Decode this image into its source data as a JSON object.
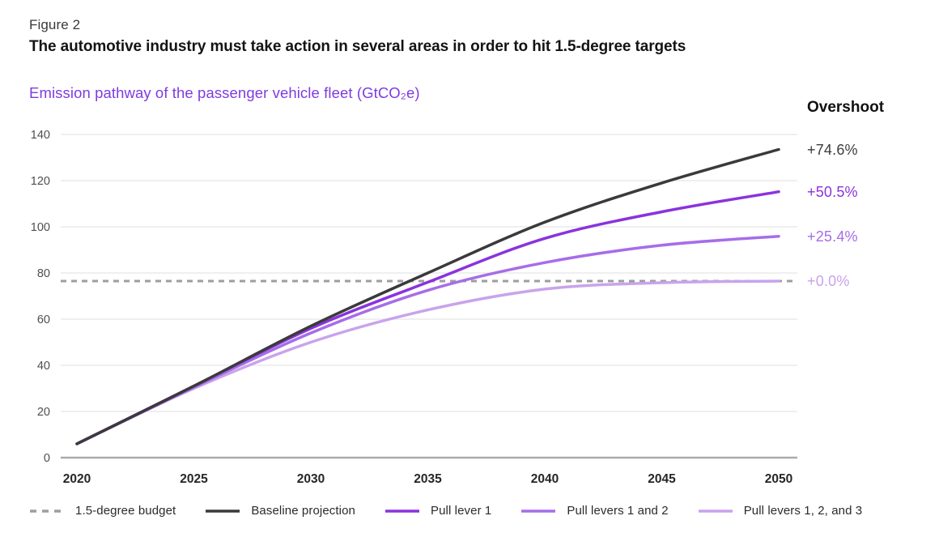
{
  "figure_label": "Figure 2",
  "title": "The automotive industry must take action in several areas in order to hit 1.5-degree targets",
  "subtitle": "Emission pathway of the passenger vehicle fleet (GtCO₂e)",
  "colors": {
    "subtitle_accent": "#7d3ce0",
    "baseline": "#3a3a3a",
    "lever1": "#8a33dd",
    "levers12": "#a66de8",
    "levers123": "#c9a3ec",
    "budget_dash": "#9e9e9e",
    "gridline": "#e5e5e5",
    "axis_line": "#ababab",
    "x_tick": "#262626",
    "y_tick": "#4f4f4f"
  },
  "overshoot": {
    "header": "Overshoot",
    "values": [
      {
        "label": "+74.6%",
        "color": "#3d3d3d",
        "series": "Baseline projection"
      },
      {
        "label": "+50.5%",
        "color": "#8a33dd",
        "series": "Pull lever 1"
      },
      {
        "label": "+25.4%",
        "color": "#a66de8",
        "series": "Pull levers 1 and 2"
      },
      {
        "label": "+0.0%",
        "color": "#c9a3ec",
        "series": "Pull levers 1, 2, and 3"
      }
    ]
  },
  "legend": {
    "items": [
      {
        "label": "1.5-degree budget",
        "color": "#9e9e9e",
        "style": "dashed"
      },
      {
        "label": "Baseline projection",
        "color": "#3a3a3a",
        "style": "solid"
      },
      {
        "label": "Pull lever 1",
        "color": "#8a33dd",
        "style": "solid"
      },
      {
        "label": "Pull levers 1 and 2",
        "color": "#a66de8",
        "style": "solid"
      },
      {
        "label": "Pull levers 1, 2, and 3",
        "color": "#c9a3ec",
        "style": "solid"
      }
    ]
  },
  "chart_data": {
    "type": "line",
    "title": "Emission pathway of the passenger vehicle fleet (GtCO₂e)",
    "xlabel": "",
    "ylabel": "GtCO₂e",
    "x": [
      2020,
      2025,
      2030,
      2035,
      2040,
      2045,
      2050
    ],
    "xticks": [
      2020,
      2025,
      2030,
      2035,
      2040,
      2045,
      2050
    ],
    "yticks": [
      0,
      20,
      40,
      60,
      80,
      100,
      120,
      140
    ],
    "ylim": [
      0,
      140
    ],
    "grid": "horizontal",
    "legend_position": "bottom",
    "series": [
      {
        "name": "Baseline projection",
        "color": "#3a3a3a",
        "overshoot": "+74.6%",
        "values": [
          6,
          31,
          57,
          80,
          102,
          119,
          133.5
        ]
      },
      {
        "name": "Pull lever 1",
        "color": "#8a33dd",
        "overshoot": "+50.5%",
        "values": [
          6,
          31,
          56,
          76,
          95,
          106.5,
          115.2
        ]
      },
      {
        "name": "Pull levers 1 and 2",
        "color": "#a66de8",
        "overshoot": "+25.4%",
        "values": [
          6,
          30.5,
          54,
          72.5,
          84.5,
          92,
          95.9
        ]
      },
      {
        "name": "Pull levers 1, 2, and 3",
        "color": "#c9a3ec",
        "overshoot": "+0.0%",
        "values": [
          6,
          30,
          50,
          64,
          73,
          75.8,
          76.5
        ]
      }
    ],
    "budget_line": {
      "label": "1.5-degree budget",
      "value": 76.5,
      "color": "#9e9e9e",
      "style": "dashed"
    }
  }
}
